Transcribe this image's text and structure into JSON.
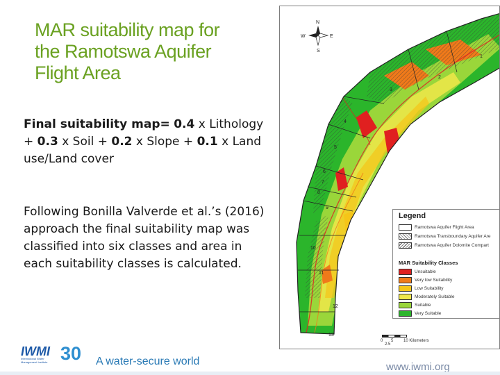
{
  "slide": {
    "title_lines": [
      "MAR suitability map for",
      "the Ramotswa Aquifer",
      "Flight Area"
    ],
    "formula": {
      "label": "Final suitability map=",
      "w1": "0.4",
      "t1": "x Lithology +",
      "w2": "0.3",
      "t2": "x Soil +",
      "w3": "0.2",
      "t3": "x Slope +",
      "w4": "0.1",
      "t4": "x Land use/Land cover"
    },
    "paragraph": "Following Bonilla Valverde et al.’s (2016) approach the final suitability map was classified into six classes and area in each suitability classes is calculated."
  },
  "map": {
    "compass": {
      "n": "N",
      "s": "S",
      "e": "E",
      "w": "W"
    },
    "zone_labels": [
      "1",
      "2",
      "3",
      "4",
      "5",
      "6",
      "7",
      "8",
      "9",
      "10",
      "11",
      "12",
      "13"
    ],
    "legend": {
      "title": "Legend",
      "boundaries": [
        {
          "label": "Ramotswa Aquifer Flight Area",
          "style": "solid"
        },
        {
          "label": "Ramotswa Transboundary Aquifer Are",
          "style": "hatch"
        },
        {
          "label": "Ramotswa Aquifer Dolomite Compart",
          "style": "hatch"
        }
      ],
      "classes_title": "MAR Suitability Classes",
      "classes": [
        {
          "label": "Unsuitable",
          "color": "#e02020"
        },
        {
          "label": "Very low Suitability",
          "color": "#f07a1a"
        },
        {
          "label": "Low Suitability",
          "color": "#f5c518"
        },
        {
          "label": "Moderately Suitable",
          "color": "#f0e84a"
        },
        {
          "label": "Suitable",
          "color": "#9ad63a"
        },
        {
          "label": "Very Suitable",
          "color": "#2bb52b"
        }
      ]
    },
    "scale": {
      "labels": [
        "0",
        "2.5",
        "5",
        "10 Kilometers"
      ]
    }
  },
  "footer": {
    "logo_text": "IWMI",
    "logo_sub": "International Water Management Institute",
    "logo_number": "30",
    "tagline": "A water-secure world",
    "url": "www.iwmi.org"
  }
}
